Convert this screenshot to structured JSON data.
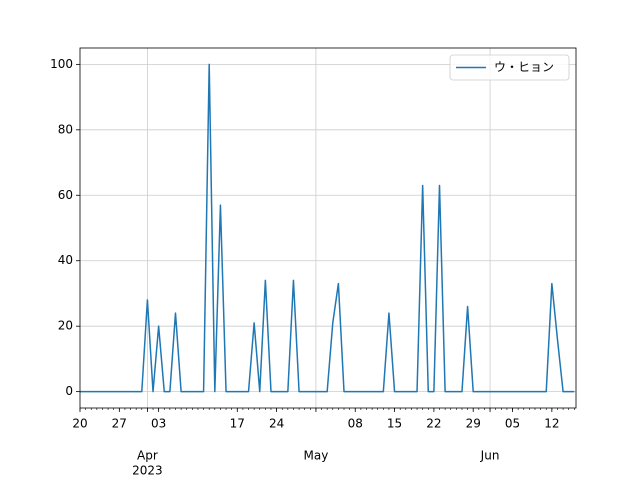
{
  "chart_data": {
    "type": "line",
    "x": [
      "2023-03-20",
      "2023-03-21",
      "2023-03-22",
      "2023-03-23",
      "2023-03-24",
      "2023-03-25",
      "2023-03-26",
      "2023-03-27",
      "2023-03-28",
      "2023-03-29",
      "2023-03-30",
      "2023-03-31",
      "2023-04-01",
      "2023-04-02",
      "2023-04-03",
      "2023-04-04",
      "2023-04-05",
      "2023-04-06",
      "2023-04-07",
      "2023-04-08",
      "2023-04-09",
      "2023-04-10",
      "2023-04-11",
      "2023-04-12",
      "2023-04-13",
      "2023-04-14",
      "2023-04-15",
      "2023-04-16",
      "2023-04-17",
      "2023-04-18",
      "2023-04-19",
      "2023-04-20",
      "2023-04-21",
      "2023-04-22",
      "2023-04-23",
      "2023-04-24",
      "2023-04-25",
      "2023-04-26",
      "2023-04-27",
      "2023-04-28",
      "2023-04-29",
      "2023-04-30",
      "2023-05-01",
      "2023-05-02",
      "2023-05-03",
      "2023-05-04",
      "2023-05-05",
      "2023-05-06",
      "2023-05-07",
      "2023-05-08",
      "2023-05-09",
      "2023-05-10",
      "2023-05-11",
      "2023-05-12",
      "2023-05-13",
      "2023-05-14",
      "2023-05-15",
      "2023-05-16",
      "2023-05-17",
      "2023-05-18",
      "2023-05-19",
      "2023-05-20",
      "2023-05-21",
      "2023-05-22",
      "2023-05-23",
      "2023-05-24",
      "2023-05-25",
      "2023-05-26",
      "2023-05-27",
      "2023-05-28",
      "2023-05-29",
      "2023-05-30",
      "2023-05-31",
      "2023-06-01",
      "2023-06-02",
      "2023-06-03",
      "2023-06-04",
      "2023-06-05",
      "2023-06-06",
      "2023-06-07",
      "2023-06-08",
      "2023-06-09",
      "2023-06-10",
      "2023-06-11",
      "2023-06-12",
      "2023-06-13",
      "2023-06-14",
      "2023-06-15",
      "2023-06-16"
    ],
    "series": [
      {
        "name": "ウ・ヒョン",
        "color": "#1f77b4",
        "values": [
          0,
          0,
          0,
          0,
          0,
          0,
          0,
          0,
          0,
          0,
          0,
          0,
          28,
          0,
          20,
          0,
          0,
          24,
          0,
          0,
          0,
          0,
          0,
          100,
          0,
          57,
          0,
          0,
          0,
          0,
          0,
          21,
          0,
          34,
          0,
          0,
          0,
          0,
          34,
          0,
          0,
          0,
          0,
          0,
          0,
          21,
          33,
          0,
          0,
          0,
          0,
          0,
          0,
          0,
          0,
          24,
          0,
          0,
          0,
          0,
          0,
          63,
          0,
          0,
          63,
          0,
          0,
          0,
          0,
          26,
          0,
          0,
          0,
          0,
          0,
          0,
          0,
          0,
          0,
          0,
          0,
          0,
          0,
          0,
          33,
          16,
          0,
          0,
          0
        ]
      }
    ],
    "xlim": [
      "2023-03-20",
      "2023-06-16"
    ],
    "xticks": [
      {
        "value": "2023-03-20",
        "label": "20"
      },
      {
        "value": "2023-03-27",
        "label": "27"
      },
      {
        "value": "2023-04-03",
        "label": "03"
      },
      {
        "value": "2023-04-17",
        "label": "17"
      },
      {
        "value": "2023-04-24",
        "label": "24"
      },
      {
        "value": "2023-05-08",
        "label": "08"
      },
      {
        "value": "2023-05-15",
        "label": "15"
      },
      {
        "value": "2023-05-22",
        "label": "22"
      },
      {
        "value": "2023-05-29",
        "label": "29"
      },
      {
        "value": "2023-06-05",
        "label": "05"
      },
      {
        "value": "2023-06-12",
        "label": "12"
      }
    ],
    "month_ticks": [
      {
        "value": "2023-04-01",
        "label": "Apr"
      },
      {
        "value": "2023-05-01",
        "label": "May"
      },
      {
        "value": "2023-06-01",
        "label": "Jun"
      }
    ],
    "year_label": "2023",
    "ylim": [
      -5,
      105
    ],
    "yticks": [
      0,
      20,
      40,
      60,
      80,
      100
    ],
    "grid": true,
    "legend": "upper right"
  }
}
